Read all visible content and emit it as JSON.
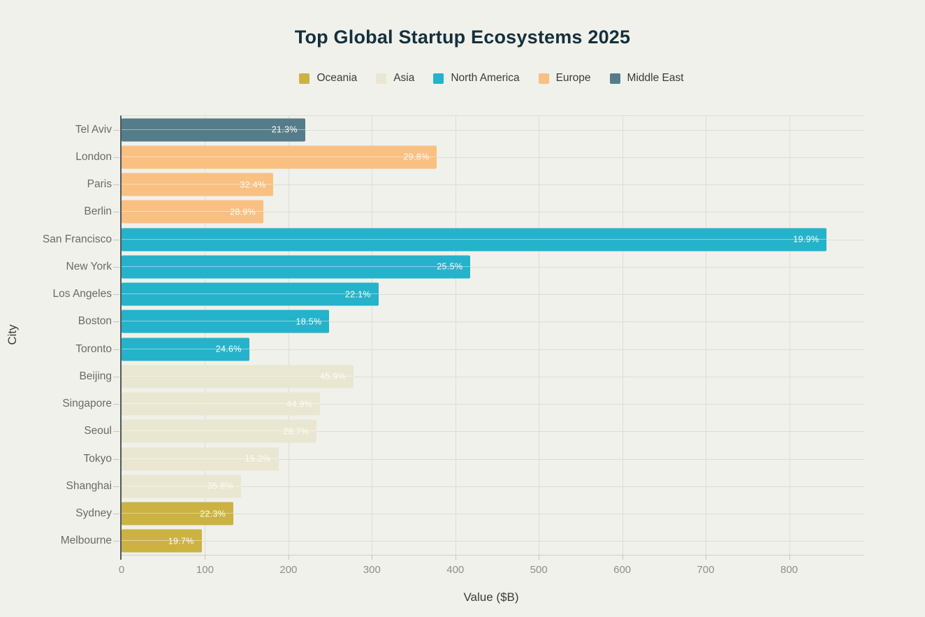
{
  "page": {
    "background": "#f0f1ea"
  },
  "chart_data": {
    "type": "bar",
    "orientation": "horizontal",
    "title": "Top Global Startup Ecosystems 2025",
    "xlabel": "Value ($B)",
    "ylabel": "City",
    "xlim": [
      0,
      890
    ],
    "xticks": [
      0,
      100,
      200,
      300,
      400,
      500,
      600,
      700,
      800
    ],
    "grid": "on",
    "legend_position": "top",
    "legend": [
      {
        "label": "Oceania",
        "color": "#ccb243"
      },
      {
        "label": "Asia",
        "color": "#e9e7d1"
      },
      {
        "label": "North America",
        "color": "#24b3ca"
      },
      {
        "label": "Europe",
        "color": "#f9c082"
      },
      {
        "label": "Middle East",
        "color": "#557c8a"
      }
    ],
    "bars": [
      {
        "city": "Tel Aviv",
        "region": "Middle East",
        "value": 220,
        "label": "21.3%"
      },
      {
        "city": "London",
        "region": "Europe",
        "value": 378,
        "label": "29.8%"
      },
      {
        "city": "Paris",
        "region": "Europe",
        "value": 182,
        "label": "32.4%"
      },
      {
        "city": "Berlin",
        "region": "Europe",
        "value": 170,
        "label": "28.9%"
      },
      {
        "city": "San Francisco",
        "region": "North America",
        "value": 845,
        "label": "19.9%"
      },
      {
        "city": "New York",
        "region": "North America",
        "value": 418,
        "label": "25.5%"
      },
      {
        "city": "Los Angeles",
        "region": "North America",
        "value": 308,
        "label": "22.1%"
      },
      {
        "city": "Boston",
        "region": "North America",
        "value": 249,
        "label": "18.5%"
      },
      {
        "city": "Toronto",
        "region": "North America",
        "value": 153,
        "label": "24.6%"
      },
      {
        "city": "Beijing",
        "region": "Asia",
        "value": 278,
        "label": "45.9%"
      },
      {
        "city": "Singapore",
        "region": "Asia",
        "value": 238,
        "label": "44.9%"
      },
      {
        "city": "Seoul",
        "region": "Asia",
        "value": 234,
        "label": "28.7%"
      },
      {
        "city": "Tokyo",
        "region": "Asia",
        "value": 188,
        "label": "15.2%"
      },
      {
        "city": "Shanghai",
        "region": "Asia",
        "value": 143,
        "label": "35.8%"
      },
      {
        "city": "Sydney",
        "region": "Oceania",
        "value": 134,
        "label": "22.3%"
      },
      {
        "city": "Melbourne",
        "region": "Oceania",
        "value": 96,
        "label": "19.7%"
      }
    ],
    "colors": {
      "background": "#f0f1ea",
      "title": "#14303e",
      "gridline": "#dcddd5",
      "axis_line": "#50565a",
      "tick_label": "#8f9089",
      "city_label": "#6a6b66",
      "bar_value_label": "#fcfcf7"
    }
  }
}
